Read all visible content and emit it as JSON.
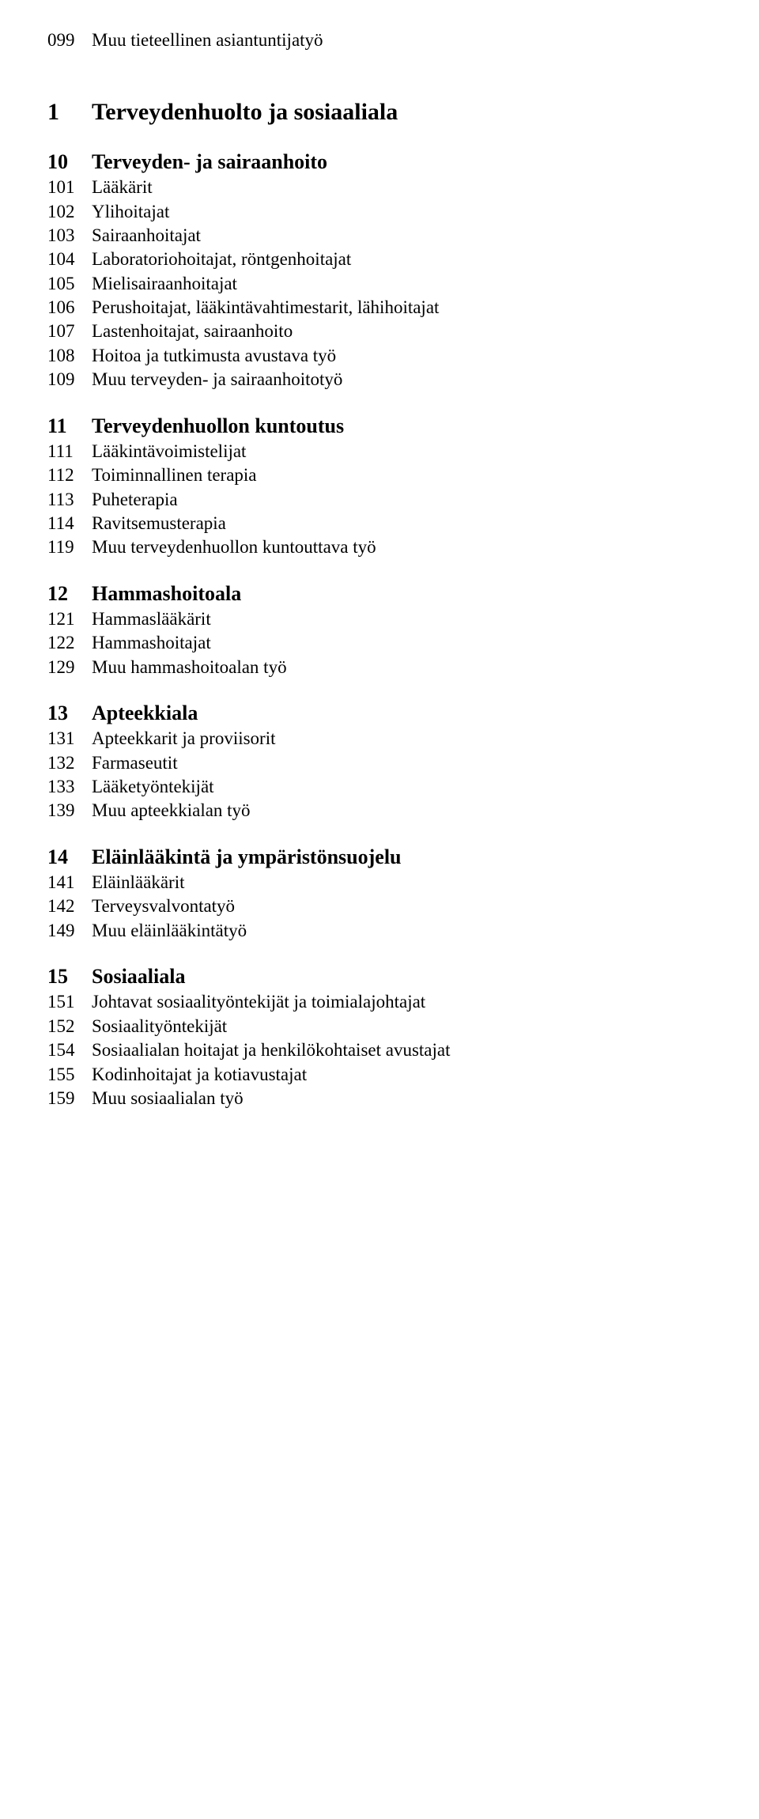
{
  "colors": {
    "text": "#000000",
    "background": "#ffffff"
  },
  "typography": {
    "font_family": "Times New Roman",
    "item_fontsize_pt": 17,
    "section_l1_fontsize_pt": 22,
    "section_l2_fontsize_pt": 19
  },
  "lead_item": {
    "code": "099",
    "label": "Muu tieteellinen asiantuntijatyö"
  },
  "sections": [
    {
      "level": 1,
      "code": "1",
      "title": "Terveydenhuolto ja sosiaaliala",
      "groups": [
        {
          "code": "10",
          "title": "Terveyden- ja sairaanhoito",
          "items": [
            {
              "code": "101",
              "label": "Lääkärit"
            },
            {
              "code": "102",
              "label": "Ylihoitajat"
            },
            {
              "code": "103",
              "label": "Sairaanhoitajat"
            },
            {
              "code": "104",
              "label": "Laboratoriohoitajat, röntgenhoitajat"
            },
            {
              "code": "105",
              "label": "Mielisairaanhoitajat"
            },
            {
              "code": "106",
              "label": "Perushoitajat, lääkintävahtimestarit, lähihoitajat"
            },
            {
              "code": "107",
              "label": "Lastenhoitajat, sairaanhoito"
            },
            {
              "code": "108",
              "label": "Hoitoa ja tutkimusta avustava työ"
            },
            {
              "code": "109",
              "label": "Muu terveyden- ja sairaanhoitotyö"
            }
          ]
        },
        {
          "code": "11",
          "title": "Terveydenhuollon kuntoutus",
          "items": [
            {
              "code": "111",
              "label": "Lääkintävoimistelijat"
            },
            {
              "code": "112",
              "label": "Toiminnallinen terapia"
            },
            {
              "code": "113",
              "label": "Puheterapia"
            },
            {
              "code": "114",
              "label": "Ravitsemusterapia"
            },
            {
              "code": "119",
              "label": "Muu terveydenhuollon kuntouttava työ"
            }
          ]
        },
        {
          "code": "12",
          "title": "Hammashoitoala",
          "items": [
            {
              "code": "121",
              "label": "Hammaslääkärit"
            },
            {
              "code": "122",
              "label": "Hammashoitajat"
            },
            {
              "code": "129",
              "label": "Muu hammashoitoalan työ"
            }
          ]
        },
        {
          "code": "13",
          "title": "Apteekkiala",
          "items": [
            {
              "code": "131",
              "label": "Apteekkarit ja proviisorit"
            },
            {
              "code": "132",
              "label": "Farmaseutit"
            },
            {
              "code": "133",
              "label": "Lääketyöntekijät"
            },
            {
              "code": "139",
              "label": "Muu apteekkialan työ"
            }
          ]
        },
        {
          "code": "14",
          "title": "Eläinlääkintä ja ympäristönsuojelu",
          "items": [
            {
              "code": "141",
              "label": "Eläinlääkärit"
            },
            {
              "code": "142",
              "label": "Terveysvalvontatyö"
            },
            {
              "code": "149",
              "label": "Muu eläinlääkintätyö"
            }
          ]
        },
        {
          "code": "15",
          "title": "Sosiaaliala",
          "items": [
            {
              "code": "151",
              "label": "Johtavat sosiaalityöntekijät ja toimialajohtajat"
            },
            {
              "code": "152",
              "label": "Sosiaalityöntekijät"
            },
            {
              "code": "154",
              "label": "Sosiaalialan hoitajat ja henkilökohtaiset avustajat"
            },
            {
              "code": "155",
              "label": "Kodinhoitajat ja kotiavustajat"
            },
            {
              "code": "159",
              "label": "Muu sosiaalialan työ"
            }
          ]
        }
      ]
    }
  ]
}
